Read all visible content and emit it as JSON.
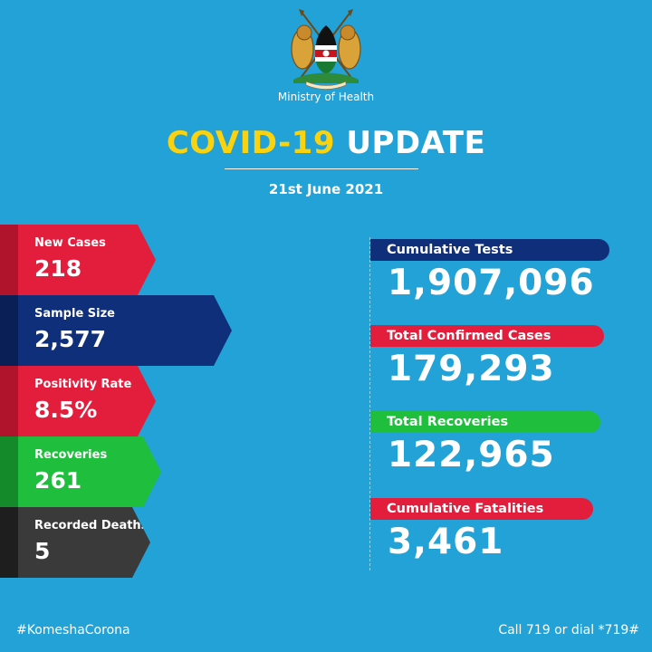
{
  "header": {
    "ministry": "Ministry of Health",
    "title_highlight": "COVID-19",
    "title_rest": "UPDATE",
    "date": "21st June 2021"
  },
  "daily": [
    {
      "label": "New Cases",
      "value": "218",
      "color": "#e31e3c"
    },
    {
      "label": "Sample Size",
      "value": "2,577",
      "color": "#102f7a"
    },
    {
      "label": "Positivity Rate",
      "value": "8.5%",
      "color": "#e31e3c"
    },
    {
      "label": "Recoveries",
      "value": "261",
      "color": "#1fbe3c"
    },
    {
      "label": "Recorded Deaths",
      "value": "5",
      "color": "#3a3a3a"
    }
  ],
  "cumulative": [
    {
      "label": "Cumulative Tests",
      "value": "1,907,096",
      "color": "#102f7a"
    },
    {
      "label": "Total Confirmed Cases",
      "value": "179,293",
      "color": "#e31e3c"
    },
    {
      "label": "Total Recoveries",
      "value": "122,965",
      "color": "#1fbe3c"
    },
    {
      "label": "Cumulative Fatalities",
      "value": "3,461",
      "color": "#e31e3c"
    }
  ],
  "footer": {
    "hashtag": "#KomeshaCorona",
    "hotline": "Call 719 or dial *719#"
  },
  "colors": {
    "background": "#22a2d6",
    "title_yellow": "#fbd20e"
  }
}
